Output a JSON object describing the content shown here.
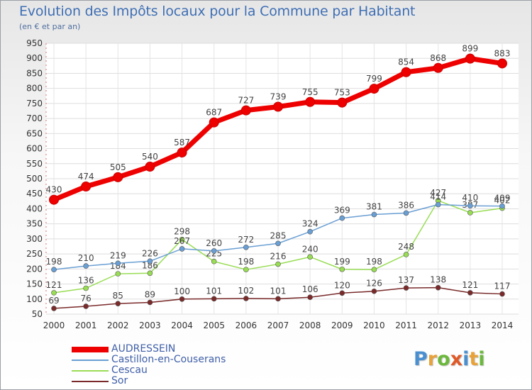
{
  "title": "Evolution des Impôts locaux pour la Commune par Habitant",
  "subtitle": "(en € et par an)",
  "logo": {
    "letters": [
      "P",
      "r",
      "o",
      "x",
      "i",
      "t",
      "i"
    ],
    "colors": [
      "#4a90d0",
      "#e8a23a",
      "#6cb83c",
      "#e05a28",
      "#4a90d0",
      "#e8a23a",
      "#6cb83c"
    ]
  },
  "chart_data": {
    "type": "line",
    "x": [
      "2000",
      "2001",
      "2002",
      "2003",
      "2004",
      "2005",
      "2006",
      "2007",
      "2008",
      "2009",
      "2010",
      "2011",
      "2012",
      "2013",
      "2014"
    ],
    "ylim": [
      50,
      950
    ],
    "yticks": [
      "50",
      "100",
      "150",
      "200",
      "250",
      "300",
      "350",
      "400",
      "450",
      "500",
      "550",
      "600",
      "650",
      "700",
      "750",
      "800",
      "850",
      "900",
      "950"
    ],
    "grid": true,
    "legend_position": "bottom-left",
    "series": [
      {
        "name": "AUDRESSEIN",
        "color": "#ee0000",
        "values": [
          430,
          474,
          505,
          540,
          587,
          687,
          727,
          739,
          755,
          753,
          799,
          854,
          868,
          899,
          883
        ],
        "labels": [
          "430",
          "474",
          "505",
          "540",
          "587",
          "687",
          "727",
          "739",
          "755",
          "753",
          "799",
          "854",
          "868",
          "899",
          "883"
        ]
      },
      {
        "name": "Castillon-en-Couserans",
        "color": "#6a9fd4",
        "values": [
          198,
          210,
          219,
          226,
          267,
          260,
          272,
          285,
          324,
          369,
          381,
          386,
          414,
          410,
          409
        ],
        "labels": [
          "198",
          "210",
          "219",
          "226",
          "267",
          "260",
          "272",
          "285",
          "324",
          "369",
          "381",
          "386",
          "414",
          "410",
          "409"
        ]
      },
      {
        "name": "Cescau",
        "color": "#99dd55",
        "values": [
          121,
          136,
          184,
          186,
          298,
          225,
          198,
          216,
          240,
          199,
          198,
          248,
          427,
          387,
          402
        ],
        "labels": [
          "121",
          "136",
          "184",
          "186",
          "298",
          "225",
          "198",
          "216",
          "240",
          "199",
          "198",
          "248",
          "427",
          "387",
          "402"
        ]
      },
      {
        "name": "Sor",
        "color": "#7a2a2a",
        "values": [
          69,
          76,
          85,
          89,
          100,
          101,
          102,
          101,
          106,
          120,
          126,
          137,
          138,
          121,
          117
        ],
        "labels": [
          "69",
          "76",
          "85",
          "89",
          "100",
          "101",
          "102",
          "101",
          "106",
          "120",
          "126",
          "137",
          "138",
          "121",
          "117"
        ]
      }
    ]
  }
}
